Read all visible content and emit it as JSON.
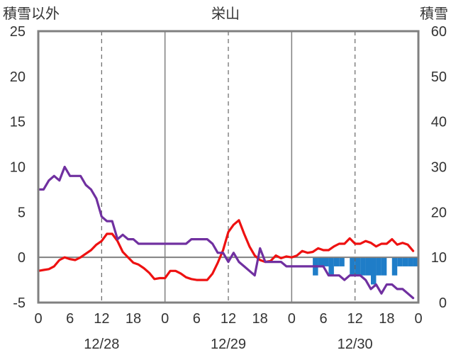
{
  "chart_data": {
    "type": "line",
    "title": "栄山",
    "left_axis_label": "積雪以外",
    "right_axis_label": "積雪",
    "left_ylim": [
      -5,
      25
    ],
    "left_yticks": [
      -5,
      0,
      5,
      10,
      15,
      20,
      25
    ],
    "right_ylim": [
      0,
      60
    ],
    "right_yticks": [
      0,
      10,
      20,
      30,
      40,
      50,
      60
    ],
    "xlim": [
      0,
      72
    ],
    "x_tick_positions": [
      0,
      6,
      12,
      18,
      24,
      30,
      36,
      42,
      48,
      54,
      60,
      66,
      72
    ],
    "x_tick_labels": [
      "0",
      "6",
      "12",
      "18",
      "0",
      "6",
      "12",
      "18",
      "0",
      "6",
      "12",
      "18",
      "0"
    ],
    "date_labels": [
      {
        "x": 12,
        "label": "12/28"
      },
      {
        "x": 36,
        "label": "12/29"
      },
      {
        "x": 60,
        "label": "12/30"
      }
    ],
    "day_lines": [
      24,
      48
    ],
    "noon_lines": [
      12,
      36,
      60
    ],
    "grid": true,
    "colors": {
      "temperature": "#ee1111",
      "snow_depth": "#7030a0",
      "snowfall_bars": "#1f7dc8",
      "frame": "#808080",
      "zero_line": "#808080"
    },
    "series": [
      {
        "key": "temperature",
        "axis": "left",
        "x": [
          0,
          1,
          2,
          3,
          4,
          5,
          6,
          7,
          8,
          9,
          10,
          11,
          12,
          13,
          14,
          15,
          16,
          17,
          18,
          19,
          20,
          21,
          22,
          23,
          24,
          25,
          26,
          27,
          28,
          29,
          30,
          31,
          32,
          33,
          34,
          35,
          36,
          37,
          38,
          39,
          40,
          41,
          42,
          43,
          44,
          45,
          46,
          47,
          48,
          49,
          50,
          51,
          52,
          53,
          54,
          55,
          56,
          57,
          58,
          59,
          60,
          61,
          62,
          63,
          64,
          65,
          66,
          67,
          68,
          69,
          70,
          71
        ],
        "y": [
          -1.5,
          -1.4,
          -1.3,
          -1.0,
          -0.3,
          0.0,
          -0.2,
          -0.3,
          0.0,
          0.4,
          0.8,
          1.4,
          1.8,
          2.6,
          2.6,
          1.8,
          0.6,
          0.0,
          -0.6,
          -0.8,
          -1.2,
          -1.7,
          -2.4,
          -2.3,
          -2.3,
          -1.5,
          -1.5,
          -1.8,
          -2.2,
          -2.4,
          -2.5,
          -2.5,
          -2.5,
          -1.8,
          -0.6,
          0.8,
          2.8,
          3.6,
          4.1,
          2.6,
          1.2,
          0.2,
          -0.3,
          -0.5,
          -0.4,
          0.2,
          -0.1,
          0.1,
          0.0,
          0.2,
          0.7,
          0.5,
          0.6,
          1.0,
          0.8,
          0.8,
          1.2,
          1.5,
          1.5,
          2.1,
          1.5,
          1.5,
          1.8,
          1.6,
          1.2,
          1.5,
          1.5,
          2.0,
          1.4,
          1.6,
          1.4,
          0.7
        ]
      },
      {
        "key": "snow_depth",
        "axis": "left",
        "x": [
          0,
          1,
          2,
          3,
          4,
          5,
          6,
          7,
          8,
          9,
          10,
          11,
          12,
          13,
          14,
          15,
          16,
          17,
          18,
          19,
          20,
          21,
          22,
          23,
          24,
          25,
          26,
          27,
          28,
          29,
          30,
          31,
          32,
          33,
          34,
          35,
          36,
          37,
          38,
          39,
          40,
          41,
          42,
          43,
          44,
          45,
          46,
          47,
          48,
          49,
          50,
          51,
          52,
          53,
          54,
          55,
          56,
          57,
          58,
          59,
          60,
          61,
          62,
          63,
          64,
          65,
          66,
          67,
          68,
          69,
          70,
          71
        ],
        "y": [
          7.5,
          7.5,
          8.5,
          9.0,
          8.5,
          10.0,
          9.0,
          9.0,
          9.0,
          8.0,
          7.5,
          6.5,
          4.5,
          4.0,
          4.0,
          2.0,
          2.5,
          2.0,
          2.0,
          1.5,
          1.5,
          1.5,
          1.5,
          1.5,
          1.5,
          1.5,
          1.5,
          1.5,
          1.5,
          2.0,
          2.0,
          2.0,
          2.0,
          1.5,
          0.5,
          0.5,
          -0.5,
          0.5,
          -0.5,
          -1.0,
          -1.5,
          -2.0,
          1.0,
          -0.5,
          -0.5,
          -0.5,
          -0.5,
          -1.0,
          -1.0,
          -1.0,
          -1.0,
          -1.0,
          -1.0,
          -1.0,
          -1.0,
          -2.0,
          -2.0,
          -2.0,
          -2.5,
          -2.0,
          -2.0,
          -2.0,
          -2.5,
          -3.5,
          -3.0,
          -4.0,
          -3.0,
          -3.0,
          -3.5,
          -3.5,
          -4.0,
          -4.5
        ]
      }
    ],
    "bars": {
      "key": "snowfall",
      "axis": "left",
      "unit_width": 1,
      "x": [
        52,
        53,
        54,
        55,
        56,
        57,
        58,
        59,
        60,
        61,
        62,
        63,
        64,
        65,
        66,
        67,
        68,
        69,
        70,
        71
      ],
      "y": [
        -2,
        -1,
        -1,
        -2,
        -1,
        -1,
        0,
        -2,
        -2,
        -2,
        -2,
        -3,
        -2,
        -2,
        0,
        -2,
        -1,
        -1,
        -1,
        -1
      ]
    }
  }
}
